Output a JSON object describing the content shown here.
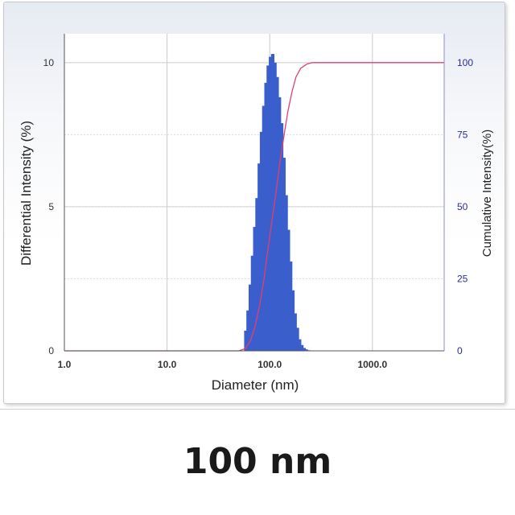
{
  "chart_data": {
    "type": "bar",
    "title": "",
    "xlabel": "Diameter (nm)",
    "ylabel": "Differential Intensity (%)",
    "y2label": "Cumulative Intensity(%)",
    "xscale": "log",
    "xlim": [
      1.0,
      5000
    ],
    "ylim": [
      0,
      11
    ],
    "y2lim": [
      0,
      110
    ],
    "x_ticks": [
      "1.0",
      "10.0",
      "100.0",
      "1000.0"
    ],
    "y_ticks": [
      "0",
      "5",
      "10"
    ],
    "y2_ticks": [
      "0",
      "25",
      "50",
      "75",
      "100"
    ],
    "grid": true,
    "series": [
      {
        "type": "bar",
        "axis": "left",
        "color": "#3a5fcd",
        "x": [
          58.5,
          61.5,
          64.7,
          68.0,
          71.5,
          75.2,
          79.1,
          83.2,
          87.5,
          92.0,
          96.7,
          101.7,
          106.9,
          112.4,
          118.2,
          124.3,
          130.7,
          137.5,
          144.6,
          152.0,
          159.9,
          168.1,
          176.8,
          185.9,
          195.5,
          205.6,
          216.2,
          227.3,
          239.0,
          251.3
        ],
        "values": [
          0.7,
          1.4,
          2.3,
          3.3,
          4.3,
          5.3,
          6.5,
          7.6,
          8.5,
          9.3,
          9.9,
          10.2,
          10.3,
          10.0,
          9.5,
          8.8,
          7.9,
          6.7,
          5.4,
          4.2,
          3.1,
          2.1,
          1.3,
          0.8,
          0.4,
          0.2,
          0.1,
          0.05,
          0.02,
          0.01
        ]
      },
      {
        "type": "line",
        "axis": "right",
        "color": "#e0406e",
        "x": [
          1.0,
          50,
          58,
          65,
          72,
          80,
          88,
          96,
          105,
          115,
          125,
          138,
          150,
          165,
          180,
          200,
          230,
          260,
          5000
        ],
        "values": [
          0,
          0,
          0.8,
          3.5,
          8.5,
          16,
          25,
          35,
          45,
          55,
          65,
          75,
          83,
          90,
          95,
          98,
          99.5,
          100,
          100
        ]
      }
    ]
  },
  "caption": "100 nm"
}
